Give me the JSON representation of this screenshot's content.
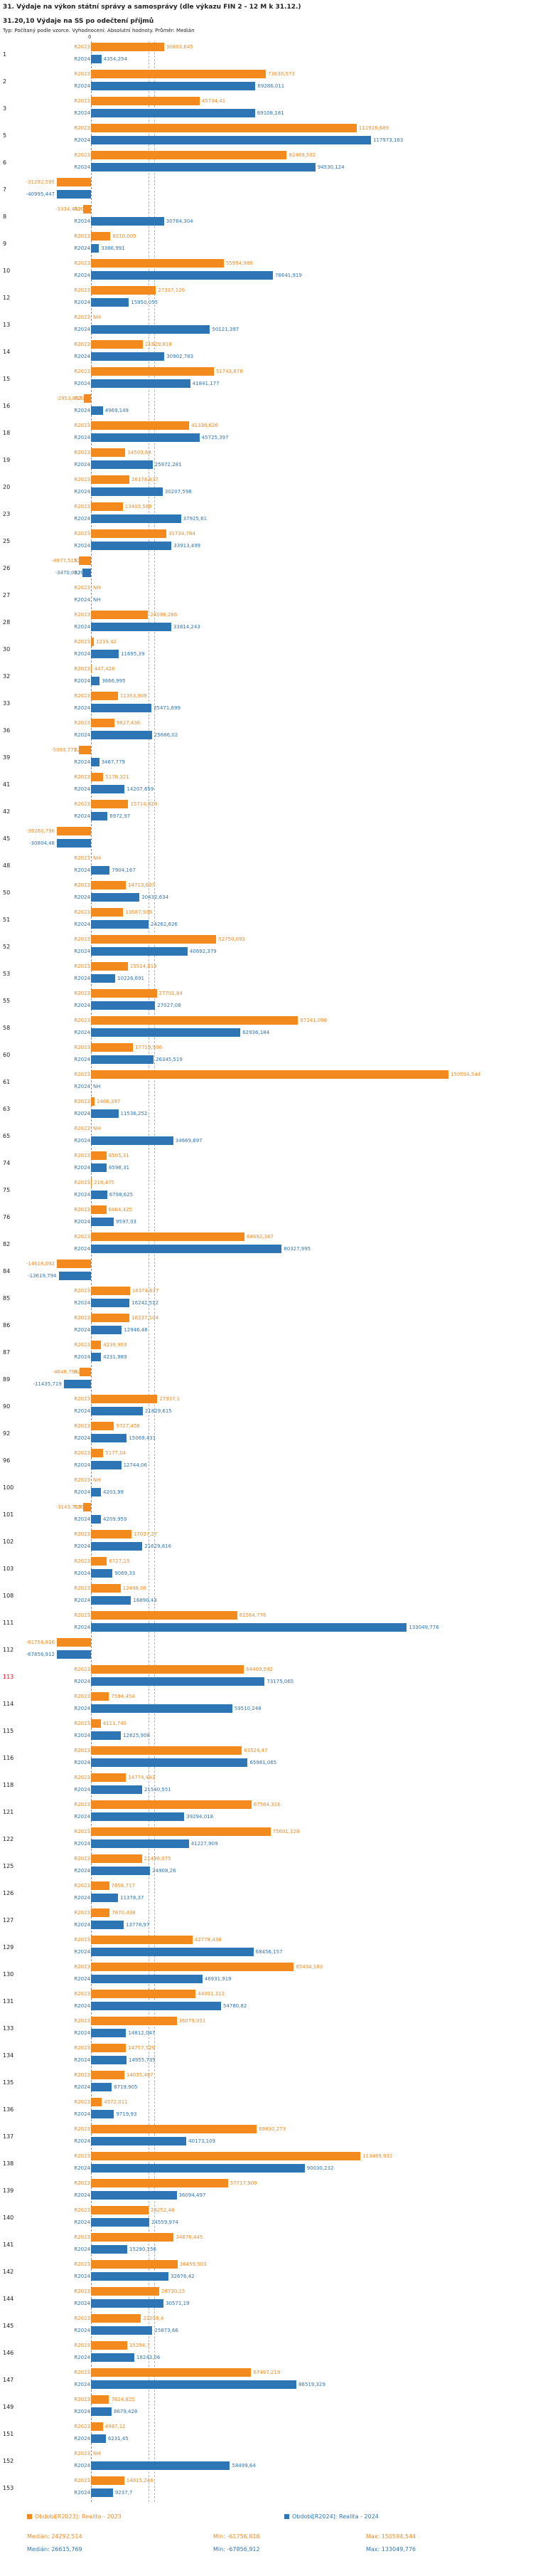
{
  "header": {
    "title": "31. Výdaje na výkon státní správy a samosprávy (dle výkazu FIN 2 - 12 M k 31.12.)",
    "subtitle": "31.20,10 Výdaje na SS po odečtení příjmů",
    "meta": "Typ: Počítaný podle vzorce. Vyhodnocení: Absolutní hodnoty. Průměr: Medián",
    "axis_zero_label": "0"
  },
  "colors": {
    "r2023": "#F28A1E",
    "r2024": "#2E75B6",
    "highlight_row": "#FF0000",
    "row_number": "#222222"
  },
  "chart_data": {
    "type": "bar",
    "orientation": "horizontal",
    "series_names": [
      "R2023",
      "R2024"
    ],
    "no_value_label": "NH",
    "axis": {
      "zero_label": "0",
      "unit": "tis. Kč"
    },
    "medians": {
      "r2023": "24292,514",
      "r2024": "26615,769"
    },
    "rows": [
      {
        "num": "1",
        "r2023": "30803,645",
        "r2024": "4354,254"
      },
      {
        "num": "2",
        "r2023": "73630,573",
        "r2024": "69286,011"
      },
      {
        "num": "3",
        "r2023": "45734,41",
        "r2024": "69108,181"
      },
      {
        "num": "5",
        "r2023": "111916,689",
        "r2024": "117973,163"
      },
      {
        "num": "6",
        "r2023": "82469,592",
        "r2024": "94530,124"
      },
      {
        "num": "7",
        "r2023": "-31292,595",
        "r2024": "-40995,447"
      },
      {
        "num": "8",
        "r2023": "-3334,452",
        "r2024": "30764,304"
      },
      {
        "num": "9",
        "r2023": "8210,005",
        "r2024": "3386,991"
      },
      {
        "num": "10",
        "r2023": "55954,989",
        "r2024": "76641,919"
      },
      {
        "num": "12",
        "r2023": "27337,126",
        "r2024": "15950,055"
      },
      {
        "num": "13",
        "r2023": "NH",
        "r2024": "50121,397"
      },
      {
        "num": "14",
        "r2023": "21829,818",
        "r2024": "30902,783"
      },
      {
        "num": "15",
        "r2023": "51743,878",
        "r2024": "41841,177"
      },
      {
        "num": "16",
        "r2023": "-2953,857",
        "r2024": "4969,149"
      },
      {
        "num": "18",
        "r2023": "41338,626",
        "r2024": "45725,397"
      },
      {
        "num": "19",
        "r2023": "14503,68",
        "r2024": "25972,281"
      },
      {
        "num": "20",
        "r2023": "16178,837",
        "r2024": "30207,598"
      },
      {
        "num": "23",
        "r2023": "13403,588",
        "r2024": "37925,61"
      },
      {
        "num": "25",
        "r2023": "31734,784",
        "r2024": "33913,499"
      },
      {
        "num": "26",
        "r2023": "-4977,515",
        "r2024": "-3470,052"
      },
      {
        "num": "27",
        "r2023": "NH",
        "r2024": "NH"
      },
      {
        "num": "28",
        "r2023": "24088,286",
        "r2024": "33814,243"
      },
      {
        "num": "30",
        "r2023": "1219,42",
        "r2024": "11695,39"
      },
      {
        "num": "32",
        "r2023": "447,428",
        "r2024": "3666,995"
      },
      {
        "num": "33",
        "r2023": "11353,908",
        "r2024": "25471,699"
      },
      {
        "num": "36",
        "r2023": "9827,436",
        "r2024": "25686,02"
      },
      {
        "num": "39",
        "r2023": "-5093,771",
        "r2024": "3467,779"
      },
      {
        "num": "41",
        "r2023": "5178,321",
        "r2024": "14207,659"
      },
      {
        "num": "42",
        "r2023": "15714,829",
        "r2024": "6972,97"
      },
      {
        "num": "45",
        "r2023": "-39260,796",
        "r2024": "-30804,48"
      },
      {
        "num": "48",
        "r2023": "NH",
        "r2024": "7904,167"
      },
      {
        "num": "50",
        "r2023": "14713,637",
        "r2024": "20432,634"
      },
      {
        "num": "51",
        "r2023": "13587,938",
        "r2024": "24262,826"
      },
      {
        "num": "52",
        "r2023": "52750,093",
        "r2024": "40692,379"
      },
      {
        "num": "53",
        "r2023": "15514,019",
        "r2024": "10226,691"
      },
      {
        "num": "55",
        "r2023": "27701,84",
        "r2024": "27027,08"
      },
      {
        "num": "58",
        "r2023": "87241,098",
        "r2024": "62936,184"
      },
      {
        "num": "60",
        "r2023": "17719,906",
        "r2024": "26345,519"
      },
      {
        "num": "61",
        "r2023": "150594,544",
        "r2024": "NH"
      },
      {
        "num": "63",
        "r2023": "1466,397",
        "r2024": "11536,252"
      },
      {
        "num": "65",
        "r2023": "NH",
        "r2024": "34669,697"
      },
      {
        "num": "74",
        "r2023": "6505,31",
        "r2024": "6598,31"
      },
      {
        "num": "75",
        "r2023": "218,475",
        "r2024": "6798,625"
      },
      {
        "num": "76",
        "r2023": "6464,425",
        "r2024": "9597,03"
      },
      {
        "num": "82",
        "r2023": "64692,387",
        "r2024": "80327,995"
      },
      {
        "num": "84",
        "r2023": "-14618,092",
        "r2024": "-13619,794"
      },
      {
        "num": "85",
        "r2023": "16374,677",
        "r2024": "16242,512"
      },
      {
        "num": "86",
        "r2023": "16237,104",
        "r2024": "12946,48"
      },
      {
        "num": "87",
        "r2023": "4239,959",
        "r2024": "4231,989"
      },
      {
        "num": "89",
        "r2023": "-4648,793",
        "r2024": "-11435,719"
      },
      {
        "num": "90",
        "r2023": "27937,1",
        "r2024": "21829,615"
      },
      {
        "num": "92",
        "r2023": "9727,456",
        "r2024": "15069,431"
      },
      {
        "num": "96",
        "r2023": "5177,04",
        "r2024": "12744,06"
      },
      {
        "num": "100",
        "r2023": "NH",
        "r2024": "4203,99"
      },
      {
        "num": "101",
        "r2023": "-3143,719",
        "r2024": "4209,959"
      },
      {
        "num": "102",
        "r2023": "17037,27",
        "r2024": "21629,816"
      },
      {
        "num": "103",
        "r2023": "6727,15",
        "r2024": "9069,33"
      },
      {
        "num": "108",
        "r2023": "12498,08",
        "r2024": "16890,43"
      },
      {
        "num": "111",
        "r2023": "61564,776",
        "r2024": "133049,776"
      },
      {
        "num": "112",
        "r2023": "-61756,816",
        "r2024": "-67856,912"
      },
      {
        "num": "113",
        "r2023": "64409,592",
        "r2024": "73175,065",
        "highlight": true
      },
      {
        "num": "114",
        "r2023": "7594,454",
        "r2024": "59510,248"
      },
      {
        "num": "115",
        "r2023": "4111,745",
        "r2024": "12625,908"
      },
      {
        "num": "116",
        "r2023": "63524,47",
        "r2024": "65981,065"
      },
      {
        "num": "118",
        "r2023": "14774,443",
        "r2024": "21540,551"
      },
      {
        "num": "121",
        "r2023": "67564,316",
        "r2024": "39294,018"
      },
      {
        "num": "122",
        "r2023": "75601,128",
        "r2024": "41227,909"
      },
      {
        "num": "125",
        "r2023": "21498,075",
        "r2024": "24908,26"
      },
      {
        "num": "126",
        "r2023": "7656,717",
        "r2024": "11378,37"
      },
      {
        "num": "127",
        "r2023": "7870,438",
        "r2024": "13778,97"
      },
      {
        "num": "129",
        "r2023": "42778,436",
        "r2024": "68456,157"
      },
      {
        "num": "130",
        "r2023": "85434,183",
        "r2024": "46931,919"
      },
      {
        "num": "131",
        "r2023": "44091,313",
        "r2024": "54780,82"
      },
      {
        "num": "133",
        "r2023": "36079,051",
        "r2024": "14812,047"
      },
      {
        "num": "134",
        "r2023": "14757,529",
        "r2024": "14955,735"
      },
      {
        "num": "135",
        "r2023": "14035,467",
        "r2024": "8719,905"
      },
      {
        "num": "136",
        "r2023": "4572,011",
        "r2024": "9719,93"
      },
      {
        "num": "137",
        "r2023": "69830,273",
        "r2024": "40173,109"
      },
      {
        "num": "138",
        "r2023": "113489,932",
        "r2024": "90030,232"
      },
      {
        "num": "139",
        "r2023": "57717,909",
        "r2024": "36094,497"
      },
      {
        "num": "140",
        "r2023": "24252,48",
        "r2024": "24559,974"
      },
      {
        "num": "141",
        "r2023": "34876,445",
        "r2024": "15290,156"
      },
      {
        "num": "142",
        "r2023": "36459,503",
        "r2024": "32676,42"
      },
      {
        "num": "144",
        "r2023": "28730,15",
        "r2024": "30571,19"
      },
      {
        "num": "145",
        "r2023": "21058,4",
        "r2024": "25873,66"
      },
      {
        "num": "146",
        "r2023": "15294,7",
        "r2024": "18243,06"
      },
      {
        "num": "147",
        "r2023": "67497,219",
        "r2024": "86519,329"
      },
      {
        "num": "149",
        "r2023": "7624,825",
        "r2024": "8679,428"
      },
      {
        "num": "151",
        "r2023": "4987,12",
        "r2024": "6231,45"
      },
      {
        "num": "152",
        "r2023": "NH",
        "r2024": "58499,64"
      },
      {
        "num": "153",
        "r2023": "14015,246",
        "r2024": "9237,7"
      }
    ]
  },
  "footer": {
    "legend": [
      {
        "label": "Období[R2023]: Realita - 2023"
      },
      {
        "label": "Období[R2024]: Realita - 2024"
      }
    ],
    "stats_r2023": {
      "median": "Medián: 24292,514",
      "min": "Min: -61756,816",
      "max": "Max: 150594,544"
    },
    "stats_r2024": {
      "median": "Medián: 26615,769",
      "min": "Min: -67856,912",
      "max": "Max: 133049,776"
    }
  }
}
